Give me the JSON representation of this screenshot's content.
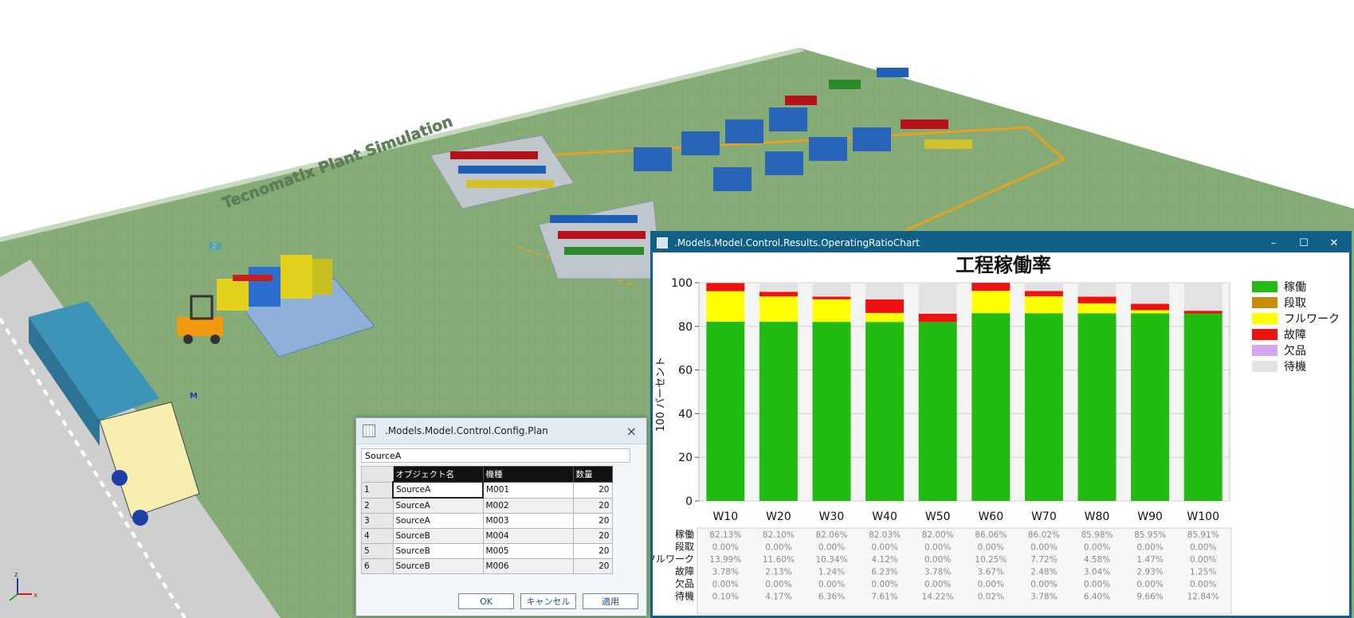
{
  "scene": {
    "banner_text": "Tecnomatix Plant Simulation",
    "marker_z": "Z",
    "marker_m": "M",
    "axis_x": "x",
    "axis_z": "z"
  },
  "plan_window": {
    "title": ".Models.Model.Control.Config.Plan",
    "close": "×",
    "input_value": "SourceA",
    "columns": [
      "オブジェクト名",
      "機種",
      "数量"
    ],
    "rows": [
      {
        "no": "1",
        "object": "SourceA",
        "model": "M001",
        "qty": "20"
      },
      {
        "no": "2",
        "object": "SourceA",
        "model": "M002",
        "qty": "20"
      },
      {
        "no": "3",
        "object": "SourceA",
        "model": "M003",
        "qty": "20"
      },
      {
        "no": "4",
        "object": "SourceB",
        "model": "M004",
        "qty": "20"
      },
      {
        "no": "5",
        "object": "SourceB",
        "model": "M005",
        "qty": "20"
      },
      {
        "no": "6",
        "object": "SourceB",
        "model": "M006",
        "qty": "20"
      }
    ],
    "buttons": {
      "ok": "OK",
      "cancel": "キャンセル",
      "apply": "適用"
    }
  },
  "chart_window": {
    "title": ".Models.Model.Control.Results.OperatingRatioChart",
    "controls": {
      "minimize": "–",
      "maximize": "☐",
      "close": "✕"
    }
  },
  "chart_data": {
    "type": "bar",
    "stacked": true,
    "title": "工程稼働率",
    "ylabel": "100 パーセント",
    "ylim": [
      0,
      100
    ],
    "yticks": [
      0,
      20,
      40,
      60,
      80,
      100
    ],
    "categories": [
      "W10",
      "W20",
      "W30",
      "W40",
      "W50",
      "W60",
      "W70",
      "W80",
      "W90",
      "W100"
    ],
    "legend_position": "right",
    "series": [
      {
        "name": "稼働",
        "color": "#22bb11",
        "values": [
          82.13,
          82.1,
          82.06,
          82.03,
          82.0,
          86.06,
          86.02,
          85.98,
          85.95,
          85.91
        ],
        "labels": [
          "82.13%",
          "82.10%",
          "82.06%",
          "82.03%",
          "82.00%",
          "86.06%",
          "86.02%",
          "85.98%",
          "85.95%",
          "85.91%"
        ]
      },
      {
        "name": "段取",
        "color": "#c88a10",
        "values": [
          0,
          0,
          0,
          0,
          0,
          0,
          0,
          0,
          0,
          0
        ],
        "labels": [
          "0.00%",
          "0.00%",
          "0.00%",
          "0.00%",
          "0.00%",
          "0.00%",
          "0.00%",
          "0.00%",
          "0.00%",
          "0.00%"
        ]
      },
      {
        "name": "フルワーク",
        "color": "#ffff00",
        "values": [
          13.99,
          11.6,
          10.34,
          4.12,
          0.0,
          10.25,
          7.72,
          4.58,
          1.47,
          0.0
        ],
        "labels": [
          "13.99%",
          "11.60%",
          "10.34%",
          "4.12%",
          "0.00%",
          "10.25%",
          "7.72%",
          "4.58%",
          "1.47%",
          "0.00%"
        ]
      },
      {
        "name": "故障",
        "color": "#ee1111",
        "values": [
          3.78,
          2.13,
          1.24,
          6.23,
          3.78,
          3.67,
          2.48,
          3.04,
          2.93,
          1.25
        ],
        "labels": [
          "3.78%",
          "2.13%",
          "1.24%",
          "6.23%",
          "3.78%",
          "3.67%",
          "2.48%",
          "3.04%",
          "2.93%",
          "1.25%"
        ]
      },
      {
        "name": "欠品",
        "color": "#d4a6f4",
        "values": [
          0,
          0,
          0,
          0,
          0,
          0,
          0,
          0,
          0,
          0
        ],
        "labels": [
          "0.00%",
          "0.00%",
          "0.00%",
          "0.00%",
          "0.00%",
          "0.00%",
          "0.00%",
          "0.00%",
          "0.00%",
          "0.00%"
        ]
      },
      {
        "name": "待機",
        "color": "#e2e2e2",
        "values": [
          0.1,
          4.17,
          6.36,
          7.61,
          14.22,
          0.02,
          3.78,
          6.4,
          9.66,
          12.84
        ],
        "labels": [
          "0.10%",
          "4.17%",
          "6.36%",
          "7.61%",
          "14.22%",
          "0.02%",
          "3.78%",
          "6.40%",
          "9.66%",
          "12.84%"
        ]
      }
    ]
  }
}
